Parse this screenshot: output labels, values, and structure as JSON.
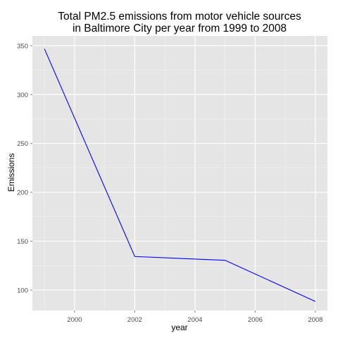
{
  "chart_data": {
    "type": "line",
    "title_lines": [
      "Total PM2.5 emissions from motor vehicle sources",
      "in Baltimore City per year from 1999 to 2008"
    ],
    "xlabel": "year",
    "ylabel": "Emissions",
    "xlim": [
      1998.6,
      2008.4
    ],
    "ylim": [
      79,
      360
    ],
    "x_ticks": [
      2000,
      2002,
      2004,
      2006,
      2008
    ],
    "y_ticks": [
      100,
      150,
      200,
      250,
      300,
      350
    ],
    "x_minor": [
      1999,
      2001,
      2003,
      2005,
      2007
    ],
    "y_minor": [
      125,
      175,
      225,
      275,
      325
    ],
    "grid": true,
    "legend": "none",
    "panel_background": "#e5e5e5",
    "grid_color": "#ffffff",
    "line_color": "#0000ff",
    "series": [
      {
        "x": [
          1999,
          2002,
          2005,
          2008
        ],
        "values": [
          346.8,
          134.3,
          130.4,
          88.3
        ]
      }
    ]
  }
}
